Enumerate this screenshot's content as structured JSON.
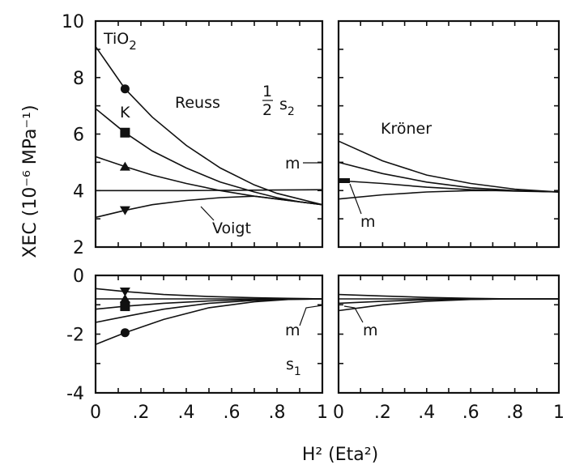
{
  "figure": {
    "ylabel": "XEC (10⁻⁶ MPa⁻¹)",
    "xlabel": "H² (Eta²)"
  },
  "chart_data": [
    {
      "type": "line",
      "id": "upper-left",
      "xlim": [
        0,
        1
      ],
      "ylim": [
        2,
        10
      ],
      "xticks": [],
      "yticks": [
        "2",
        "4",
        "6",
        "8",
        "10"
      ],
      "annotations": {
        "material": "TiO",
        "material_sub": "2",
        "reuss": "Reuss",
        "K": "K",
        "quantity": "s",
        "quantity_sub": "2",
        "m": "m",
        "voigt": "Voigt"
      },
      "marker_x": 0.13,
      "series": [
        {
          "marker": "circle",
          "x": [
            0,
            0.13,
            0.25,
            0.4,
            0.55,
            0.7,
            0.8,
            0.9,
            1
          ],
          "y": [
            9.1,
            7.6,
            6.6,
            5.6,
            4.8,
            4.2,
            3.9,
            3.7,
            3.5
          ]
        },
        {
          "marker": "square",
          "x": [
            0,
            0.13,
            0.25,
            0.4,
            0.55,
            0.7,
            0.8,
            0.9,
            1
          ],
          "y": [
            6.9,
            6.05,
            5.4,
            4.8,
            4.3,
            3.95,
            3.75,
            3.6,
            3.5
          ]
        },
        {
          "marker": "triangle-up",
          "x": [
            0,
            0.13,
            0.25,
            0.4,
            0.55,
            0.7,
            0.8,
            0.9,
            1
          ],
          "y": [
            5.2,
            4.85,
            4.55,
            4.25,
            4.0,
            3.8,
            3.7,
            3.6,
            3.5
          ]
        },
        {
          "marker": "none",
          "x": [
            0,
            0.2,
            0.4,
            0.6,
            0.8,
            1
          ],
          "y": [
            4.0,
            4.0,
            4.0,
            4.01,
            4.02,
            4.03
          ]
        },
        {
          "marker": "triangle-down",
          "x": [
            0,
            0.13,
            0.25,
            0.4,
            0.55,
            0.7,
            0.8,
            0.9,
            1
          ],
          "y": [
            3.05,
            3.3,
            3.5,
            3.65,
            3.75,
            3.8,
            3.7,
            3.6,
            3.5
          ]
        }
      ]
    },
    {
      "type": "line",
      "id": "upper-right",
      "xlim": [
        0,
        1
      ],
      "ylim": [
        2,
        10
      ],
      "annotations": {
        "kroner": "Kröner",
        "m": "m"
      },
      "series": [
        {
          "x": [
            0,
            0.2,
            0.4,
            0.6,
            0.8,
            1
          ],
          "y": [
            5.75,
            5.05,
            4.55,
            4.25,
            4.05,
            3.95
          ]
        },
        {
          "x": [
            0,
            0.2,
            0.4,
            0.6,
            0.8,
            1
          ],
          "y": [
            5.0,
            4.6,
            4.3,
            4.1,
            4.0,
            3.95
          ]
        },
        {
          "x": [
            0,
            0.2,
            0.4,
            0.6,
            0.8,
            1
          ],
          "y": [
            4.35,
            4.25,
            4.12,
            4.03,
            3.98,
            3.95
          ]
        },
        {
          "x": [
            0,
            0.2,
            0.4,
            0.6,
            0.8,
            1
          ],
          "y": [
            3.7,
            3.85,
            3.95,
            4.0,
            4.0,
            3.95
          ]
        }
      ]
    },
    {
      "type": "line",
      "id": "lower-left",
      "xlim": [
        0,
        1
      ],
      "ylim": [
        -4,
        0
      ],
      "xticks": [
        "0",
        ".2",
        ".4",
        ".6",
        ".8",
        "1"
      ],
      "yticks": [
        "-4",
        "-2",
        "0"
      ],
      "annotations": {
        "quantity": "s",
        "quantity_sub": "1",
        "m": "m"
      },
      "marker_x": 0.13,
      "series": [
        {
          "marker": "triangle-down",
          "x": [
            0,
            0.13,
            0.3,
            0.5,
            0.7,
            0.85,
            1
          ],
          "y": [
            -0.45,
            -0.55,
            -0.65,
            -0.72,
            -0.76,
            -0.78,
            -0.8
          ]
        },
        {
          "marker": "triangle-up",
          "x": [
            0,
            0.13,
            0.3,
            0.5,
            0.7,
            0.85,
            1
          ],
          "y": [
            -0.8,
            -0.8,
            -0.8,
            -0.8,
            -0.8,
            -0.8,
            -0.8
          ]
        },
        {
          "marker": "square",
          "x": [
            0,
            0.13,
            0.3,
            0.5,
            0.7,
            0.85,
            1
          ],
          "y": [
            -1.15,
            -1.05,
            -0.95,
            -0.87,
            -0.82,
            -0.8,
            -0.8
          ]
        },
        {
          "marker": "none",
          "x": [
            0,
            0.13,
            0.3,
            0.5,
            0.7,
            0.85,
            1
          ],
          "y": [
            -1.6,
            -1.4,
            -1.15,
            -0.95,
            -0.85,
            -0.81,
            -0.8
          ]
        },
        {
          "marker": "circle",
          "x": [
            0,
            0.13,
            0.3,
            0.5,
            0.7,
            0.85,
            1
          ],
          "y": [
            -2.35,
            -1.95,
            -1.5,
            -1.1,
            -0.9,
            -0.82,
            -0.8
          ]
        }
      ]
    },
    {
      "type": "line",
      "id": "lower-right",
      "xlim": [
        0,
        1
      ],
      "ylim": [
        -4,
        0
      ],
      "xticks": [
        "0",
        ".2",
        ".4",
        ".6",
        ".8",
        "1"
      ],
      "annotations": {
        "m": "m"
      },
      "series": [
        {
          "x": [
            0,
            0.2,
            0.4,
            0.6,
            0.8,
            1
          ],
          "y": [
            -0.65,
            -0.7,
            -0.75,
            -0.78,
            -0.8,
            -0.8
          ]
        },
        {
          "x": [
            0,
            0.2,
            0.4,
            0.6,
            0.8,
            1
          ],
          "y": [
            -0.8,
            -0.8,
            -0.8,
            -0.8,
            -0.8,
            -0.8
          ]
        },
        {
          "x": [
            0,
            0.2,
            0.4,
            0.6,
            0.8,
            1
          ],
          "y": [
            -0.95,
            -0.88,
            -0.83,
            -0.81,
            -0.8,
            -0.8
          ]
        },
        {
          "x": [
            0,
            0.2,
            0.4,
            0.6,
            0.8,
            1
          ],
          "y": [
            -1.2,
            -1.0,
            -0.88,
            -0.82,
            -0.8,
            -0.8
          ]
        }
      ]
    }
  ]
}
